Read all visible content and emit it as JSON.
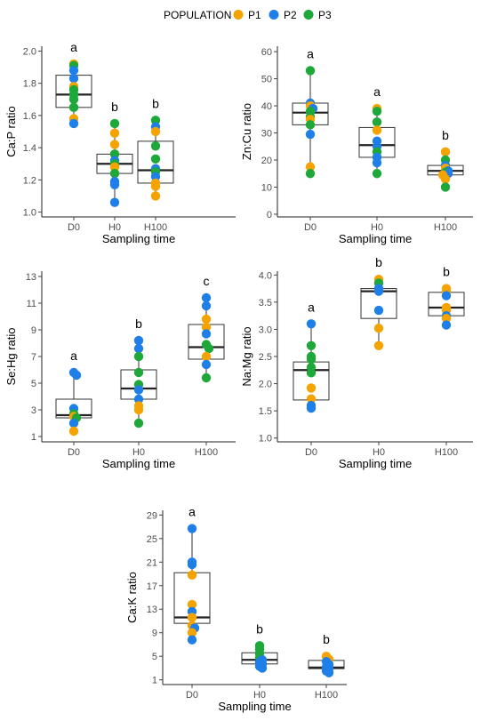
{
  "legend": {
    "title": "POPULATION",
    "entries": [
      {
        "label": "P1",
        "color": "#F5A300"
      },
      {
        "label": "P2",
        "color": "#1F7FE8"
      },
      {
        "label": "P3",
        "color": "#1EA83A"
      }
    ]
  },
  "chart_data": [
    {
      "type": "box",
      "ylabel": "Ca:P ratio",
      "xlabel": "Sampling time",
      "categories": [
        "D0",
        "H0",
        "H100"
      ],
      "yticks": [
        1.0,
        1.2,
        1.4,
        1.6,
        1.8,
        2.0
      ],
      "ylim": [
        0.97,
        2.03
      ],
      "boxes": [
        {
          "min": 1.55,
          "q1": 1.65,
          "median": 1.73,
          "q3": 1.85,
          "max": 1.92,
          "letter": "a"
        },
        {
          "min": 1.06,
          "q1": 1.24,
          "median": 1.3,
          "q3": 1.36,
          "max": 1.55,
          "letter": "b"
        },
        {
          "min": 1.1,
          "q1": 1.18,
          "median": 1.26,
          "q3": 1.44,
          "max": 1.57,
          "letter": "b"
        }
      ],
      "points": [
        {
          "x": "D0",
          "y": 1.92,
          "pop": "P1"
        },
        {
          "x": "D0",
          "y": 1.91,
          "pop": "P3"
        },
        {
          "x": "D0",
          "y": 1.88,
          "pop": "P2"
        },
        {
          "x": "D0",
          "y": 1.83,
          "pop": "P2"
        },
        {
          "x": "D0",
          "y": 1.78,
          "pop": "P1"
        },
        {
          "x": "D0",
          "y": 1.76,
          "pop": "P3"
        },
        {
          "x": "D0",
          "y": 1.73,
          "pop": "P3"
        },
        {
          "x": "D0",
          "y": 1.7,
          "pop": "P3"
        },
        {
          "x": "D0",
          "y": 1.65,
          "pop": "P3"
        },
        {
          "x": "D0",
          "y": 1.58,
          "pop": "P1"
        },
        {
          "x": "D0",
          "y": 1.55,
          "pop": "P2"
        },
        {
          "x": "H0",
          "y": 1.55,
          "pop": "P3"
        },
        {
          "x": "H0",
          "y": 1.49,
          "pop": "P1"
        },
        {
          "x": "H0",
          "y": 1.42,
          "pop": "P1"
        },
        {
          "x": "H0",
          "y": 1.36,
          "pop": "P3"
        },
        {
          "x": "H0",
          "y": 1.32,
          "pop": "P2"
        },
        {
          "x": "H0",
          "y": 1.3,
          "pop": "P3"
        },
        {
          "x": "H0",
          "y": 1.28,
          "pop": "P1"
        },
        {
          "x": "H0",
          "y": 1.24,
          "pop": "P3"
        },
        {
          "x": "H0",
          "y": 1.19,
          "pop": "P2"
        },
        {
          "x": "H0",
          "y": 1.17,
          "pop": "P2"
        },
        {
          "x": "H0",
          "y": 1.06,
          "pop": "P2"
        },
        {
          "x": "H100",
          "y": 1.57,
          "pop": "P3"
        },
        {
          "x": "H100",
          "y": 1.53,
          "pop": "P2"
        },
        {
          "x": "H100",
          "y": 1.5,
          "pop": "P1"
        },
        {
          "x": "H100",
          "y": 1.41,
          "pop": "P3"
        },
        {
          "x": "H100",
          "y": 1.33,
          "pop": "P3"
        },
        {
          "x": "H100",
          "y": 1.27,
          "pop": "P2"
        },
        {
          "x": "H100",
          "y": 1.25,
          "pop": "P3"
        },
        {
          "x": "H100",
          "y": 1.22,
          "pop": "P2"
        },
        {
          "x": "H100",
          "y": 1.18,
          "pop": "P1"
        },
        {
          "x": "H100",
          "y": 1.16,
          "pop": "P1"
        },
        {
          "x": "H100",
          "y": 1.1,
          "pop": "P1"
        }
      ]
    },
    {
      "type": "box",
      "ylabel": "Zn:Cu ratio",
      "xlabel": "Sampling time",
      "categories": [
        "D0",
        "H0",
        "H100"
      ],
      "yticks": [
        0,
        10,
        20,
        30,
        40,
        50,
        60
      ],
      "ylim": [
        -1,
        62
      ],
      "boxes": [
        {
          "min": 15,
          "q1": 33,
          "median": 37.5,
          "q3": 41,
          "max": 53,
          "letter": "a"
        },
        {
          "min": 15,
          "q1": 21,
          "median": 25.5,
          "q3": 32,
          "max": 39,
          "letter": "a"
        },
        {
          "min": 10,
          "q1": 14.5,
          "median": 16,
          "q3": 18,
          "max": 23,
          "letter": "b"
        }
      ],
      "points": [
        {
          "x": "D0",
          "y": 53,
          "pop": "P3"
        },
        {
          "x": "D0",
          "y": 41,
          "pop": "P2"
        },
        {
          "x": "D0",
          "y": 40,
          "pop": "P1"
        },
        {
          "x": "D0",
          "y": 39,
          "pop": "P2"
        },
        {
          "x": "D0",
          "y": 38,
          "pop": "P3"
        },
        {
          "x": "D0",
          "y": 36,
          "pop": "P3"
        },
        {
          "x": "D0",
          "y": 35,
          "pop": "P1"
        },
        {
          "x": "D0",
          "y": 33,
          "pop": "P3"
        },
        {
          "x": "D0",
          "y": 29.5,
          "pop": "P2"
        },
        {
          "x": "D0",
          "y": 17.5,
          "pop": "P1"
        },
        {
          "x": "D0",
          "y": 15,
          "pop": "P3"
        },
        {
          "x": "H0",
          "y": 39,
          "pop": "P1"
        },
        {
          "x": "H0",
          "y": 38,
          "pop": "P3"
        },
        {
          "x": "H0",
          "y": 34,
          "pop": "P3"
        },
        {
          "x": "H0",
          "y": 31,
          "pop": "P1"
        },
        {
          "x": "H0",
          "y": 27,
          "pop": "P2"
        },
        {
          "x": "H0",
          "y": 25,
          "pop": "P2"
        },
        {
          "x": "H0",
          "y": 23,
          "pop": "P3"
        },
        {
          "x": "H0",
          "y": 21,
          "pop": "P2"
        },
        {
          "x": "H0",
          "y": 19,
          "pop": "P2"
        },
        {
          "x": "H0",
          "y": 15,
          "pop": "P3"
        },
        {
          "x": "H100",
          "y": 23,
          "pop": "P1"
        },
        {
          "x": "H100",
          "y": 20,
          "pop": "P3"
        },
        {
          "x": "H100",
          "y": 18,
          "pop": "P2"
        },
        {
          "x": "H100",
          "y": 17,
          "pop": "P1"
        },
        {
          "x": "H100",
          "y": 16,
          "pop": "P2"
        },
        {
          "x": "H100",
          "y": 15.5,
          "pop": "P3"
        },
        {
          "x": "H100",
          "y": 15,
          "pop": "P2"
        },
        {
          "x": "H100",
          "y": 14.5,
          "pop": "P1"
        },
        {
          "x": "H100",
          "y": 13,
          "pop": "P1"
        },
        {
          "x": "H100",
          "y": 10,
          "pop": "P3"
        }
      ]
    },
    {
      "type": "box",
      "ylabel": "Se:Hg ratio",
      "xlabel": "Sampling time",
      "categories": [
        "D0",
        "H0",
        "H100"
      ],
      "yticks": [
        1,
        3,
        5,
        7,
        9,
        11,
        13
      ],
      "ylim": [
        0.6,
        13.4
      ],
      "boxes": [
        {
          "min": 1.4,
          "q1": 2.4,
          "median": 2.6,
          "q3": 3.8,
          "max": 5.8,
          "letter": "a"
        },
        {
          "min": 2.0,
          "q1": 3.8,
          "median": 4.6,
          "q3": 6.0,
          "max": 8.2,
          "letter": "b"
        },
        {
          "min": 5.4,
          "q1": 6.8,
          "median": 7.7,
          "q3": 9.4,
          "max": 11.4,
          "letter": "c"
        }
      ],
      "points": [
        {
          "x": "D0",
          "y": 5.8,
          "pop": "P2"
        },
        {
          "x": "D0",
          "y": 5.6,
          "pop": "P2"
        },
        {
          "x": "D0",
          "y": 3.1,
          "pop": "P2"
        },
        {
          "x": "D0",
          "y": 2.7,
          "pop": "P3"
        },
        {
          "x": "D0",
          "y": 2.5,
          "pop": "P1"
        },
        {
          "x": "D0",
          "y": 2.4,
          "pop": "P3"
        },
        {
          "x": "D0",
          "y": 2.0,
          "pop": "P2"
        },
        {
          "x": "D0",
          "y": 1.4,
          "pop": "P1"
        },
        {
          "x": "H0",
          "y": 8.2,
          "pop": "P2"
        },
        {
          "x": "H0",
          "y": 7.6,
          "pop": "P2"
        },
        {
          "x": "H0",
          "y": 7.0,
          "pop": "P3"
        },
        {
          "x": "H0",
          "y": 5.8,
          "pop": "P3"
        },
        {
          "x": "H0",
          "y": 4.9,
          "pop": "P3"
        },
        {
          "x": "H0",
          "y": 4.5,
          "pop": "P2"
        },
        {
          "x": "H0",
          "y": 3.8,
          "pop": "P2"
        },
        {
          "x": "H0",
          "y": 3.3,
          "pop": "P1"
        },
        {
          "x": "H0",
          "y": 3.0,
          "pop": "P1"
        },
        {
          "x": "H0",
          "y": 2.0,
          "pop": "P3"
        },
        {
          "x": "H100",
          "y": 11.4,
          "pop": "P2"
        },
        {
          "x": "H100",
          "y": 10.8,
          "pop": "P2"
        },
        {
          "x": "H100",
          "y": 9.8,
          "pop": "P1"
        },
        {
          "x": "H100",
          "y": 9.2,
          "pop": "P1"
        },
        {
          "x": "H100",
          "y": 8.7,
          "pop": "P2"
        },
        {
          "x": "H100",
          "y": 7.9,
          "pop": "P3"
        },
        {
          "x": "H100",
          "y": 7.6,
          "pop": "P3"
        },
        {
          "x": "H100",
          "y": 7.0,
          "pop": "P1"
        },
        {
          "x": "H100",
          "y": 6.4,
          "pop": "P2"
        },
        {
          "x": "H100",
          "y": 5.4,
          "pop": "P3"
        }
      ]
    },
    {
      "type": "box",
      "ylabel": "Na:Mg ratio",
      "xlabel": "Sampling time",
      "categories": [
        "D0",
        "H0",
        "H100"
      ],
      "yticks": [
        1.0,
        1.5,
        2.0,
        2.5,
        3.0,
        3.5,
        4.0
      ],
      "ylim": [
        0.93,
        4.07
      ],
      "boxes": [
        {
          "min": 1.55,
          "q1": 1.7,
          "median": 2.25,
          "q3": 2.4,
          "max": 3.1,
          "letter": "a"
        },
        {
          "min": 2.7,
          "q1": 3.2,
          "median": 3.7,
          "q3": 3.75,
          "max": 3.92,
          "letter": "b"
        },
        {
          "min": 3.08,
          "q1": 3.25,
          "median": 3.4,
          "q3": 3.68,
          "max": 3.75,
          "letter": "b"
        }
      ],
      "points": [
        {
          "x": "D0",
          "y": 3.1,
          "pop": "P2"
        },
        {
          "x": "D0",
          "y": 2.7,
          "pop": "P3"
        },
        {
          "x": "D0",
          "y": 2.5,
          "pop": "P3"
        },
        {
          "x": "D0",
          "y": 2.45,
          "pop": "P3"
        },
        {
          "x": "D0",
          "y": 2.3,
          "pop": "P3"
        },
        {
          "x": "D0",
          "y": 2.2,
          "pop": "P3"
        },
        {
          "x": "D0",
          "y": 1.92,
          "pop": "P1"
        },
        {
          "x": "D0",
          "y": 1.72,
          "pop": "P1"
        },
        {
          "x": "D0",
          "y": 1.6,
          "pop": "P2"
        },
        {
          "x": "D0",
          "y": 1.55,
          "pop": "P2"
        },
        {
          "x": "H0",
          "y": 3.92,
          "pop": "P1"
        },
        {
          "x": "H0",
          "y": 3.85,
          "pop": "P3"
        },
        {
          "x": "H0",
          "y": 3.75,
          "pop": "P2"
        },
        {
          "x": "H0",
          "y": 3.7,
          "pop": "P2"
        },
        {
          "x": "H0",
          "y": 3.35,
          "pop": "P2"
        },
        {
          "x": "H0",
          "y": 3.02,
          "pop": "P1"
        },
        {
          "x": "H0",
          "y": 2.7,
          "pop": "P1"
        },
        {
          "x": "H100",
          "y": 3.75,
          "pop": "P1"
        },
        {
          "x": "H100",
          "y": 3.7,
          "pop": "P1"
        },
        {
          "x": "H100",
          "y": 3.62,
          "pop": "P2"
        },
        {
          "x": "H100",
          "y": 3.4,
          "pop": "P1"
        },
        {
          "x": "H100",
          "y": 3.35,
          "pop": "P1"
        },
        {
          "x": "H100",
          "y": 3.25,
          "pop": "P2"
        },
        {
          "x": "H100",
          "y": 3.2,
          "pop": "P1"
        },
        {
          "x": "H100",
          "y": 3.08,
          "pop": "P2"
        }
      ]
    },
    {
      "type": "box",
      "ylabel": "Ca:K ratio",
      "xlabel": "Sampling time",
      "categories": [
        "D0",
        "H0",
        "H100"
      ],
      "yticks": [
        1,
        5,
        9,
        13,
        17,
        21,
        25,
        29
      ],
      "ylim": [
        0.2,
        29.8
      ],
      "boxes": [
        {
          "min": 7.8,
          "q1": 10.6,
          "median": 11.6,
          "q3": 19.2,
          "max": 26.7,
          "letter": "a"
        },
        {
          "min": 3.0,
          "q1": 3.7,
          "median": 4.4,
          "q3": 5.6,
          "max": 6.8,
          "letter": "b"
        },
        {
          "min": 2.2,
          "q1": 2.9,
          "median": 3.1,
          "q3": 4.3,
          "max": 5.0,
          "letter": "b"
        }
      ],
      "points": [
        {
          "x": "D0",
          "y": 26.7,
          "pop": "P2"
        },
        {
          "x": "D0",
          "y": 21.0,
          "pop": "P2"
        },
        {
          "x": "D0",
          "y": 20.6,
          "pop": "P2"
        },
        {
          "x": "D0",
          "y": 18.8,
          "pop": "P1"
        },
        {
          "x": "D0",
          "y": 13.8,
          "pop": "P1"
        },
        {
          "x": "D0",
          "y": 12.6,
          "pop": "P2"
        },
        {
          "x": "D0",
          "y": 11.6,
          "pop": "P1"
        },
        {
          "x": "D0",
          "y": 10.2,
          "pop": "P1"
        },
        {
          "x": "D0",
          "y": 9.8,
          "pop": "P2"
        },
        {
          "x": "D0",
          "y": 9.0,
          "pop": "P1"
        },
        {
          "x": "D0",
          "y": 7.8,
          "pop": "P2"
        },
        {
          "x": "H0",
          "y": 6.8,
          "pop": "P3"
        },
        {
          "x": "H0",
          "y": 6.2,
          "pop": "P3"
        },
        {
          "x": "H0",
          "y": 5.5,
          "pop": "P3"
        },
        {
          "x": "H0",
          "y": 4.8,
          "pop": "P3"
        },
        {
          "x": "H0",
          "y": 4.4,
          "pop": "P2"
        },
        {
          "x": "H0",
          "y": 4.0,
          "pop": "P2"
        },
        {
          "x": "H0",
          "y": 3.7,
          "pop": "P2"
        },
        {
          "x": "H0",
          "y": 3.3,
          "pop": "P2"
        },
        {
          "x": "H0",
          "y": 3.0,
          "pop": "P2"
        },
        {
          "x": "H100",
          "y": 5.0,
          "pop": "P1"
        },
        {
          "x": "H100",
          "y": 4.5,
          "pop": "P1"
        },
        {
          "x": "H100",
          "y": 4.1,
          "pop": "P2"
        },
        {
          "x": "H100",
          "y": 3.6,
          "pop": "P2"
        },
        {
          "x": "H100",
          "y": 3.2,
          "pop": "P2"
        },
        {
          "x": "H100",
          "y": 2.9,
          "pop": "P2"
        },
        {
          "x": "H100",
          "y": 2.5,
          "pop": "P2"
        },
        {
          "x": "H100",
          "y": 2.2,
          "pop": "P2"
        }
      ]
    }
  ]
}
